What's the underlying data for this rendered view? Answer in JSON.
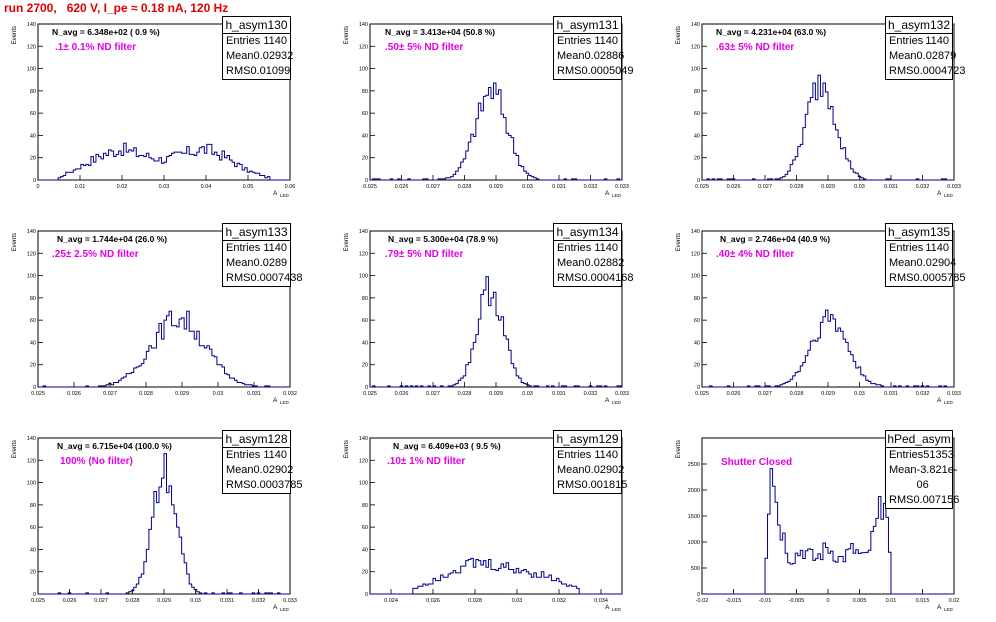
{
  "title": "run 2700,   620 V, I_pe ≈ 0.18 nA, 120 Hz",
  "colors": {
    "hist": "#00008b",
    "title": "#e00000",
    "filter": "#e600e6"
  },
  "y_axis_label": "Events",
  "x_axis_label": "A",
  "x_axis_sub": "LED",
  "chart_data": [
    {
      "type": "bar",
      "name": "h_asym130",
      "navg": "N_avg = 6.348e+02 ( 0.9 %)",
      "filter": ".1± 0.1% ND filter",
      "stats": {
        "Entries": "1140",
        "Mean": "0.02932",
        "RMS": "0.01099"
      },
      "xlim": [
        0,
        0.06
      ],
      "ylim": [
        0,
        140
      ],
      "xticks": [
        "0",
        "0.01",
        "0.02",
        "0.03",
        "0.04",
        "0.05",
        "0.06"
      ],
      "yticks": [
        "0",
        "20",
        "40",
        "60",
        "80",
        "100",
        "120",
        "140"
      ],
      "shape": "bimodal",
      "x": [
        0.005,
        0.01,
        0.015,
        0.02,
        0.025,
        0.03,
        0.035,
        0.04,
        0.045,
        0.05,
        0.055
      ],
      "values": [
        2,
        12,
        22,
        28,
        22,
        18,
        24,
        28,
        20,
        8,
        2
      ]
    },
    {
      "type": "bar",
      "name": "h_asym131",
      "navg": "N_avg = 3.413e+04 (50.8 %)",
      "filter": ".50± 5% ND filter",
      "stats": {
        "Entries": "1140",
        "Mean": "0.02886",
        "RMS": "0.0005049"
      },
      "xlim": [
        0.025,
        0.033
      ],
      "ylim": [
        0,
        140
      ],
      "xticks": [
        "0.025",
        "0.026",
        "0.027",
        "0.028",
        "0.029",
        "0.03",
        "0.031",
        "0.032",
        "0.033"
      ],
      "yticks": [
        "0",
        "20",
        "40",
        "60",
        "80",
        "100",
        "120",
        "140"
      ],
      "shape": "gauss",
      "peak": 80,
      "mean": 0.02886,
      "rms": 0.0005049
    },
    {
      "type": "bar",
      "name": "h_asym132",
      "navg": "N_avg = 4.231e+04 (63.0 %)",
      "filter": ".63± 5% ND filter",
      "stats": {
        "Entries": "1140",
        "Mean": "0.02879",
        "RMS": "0.0004723"
      },
      "xlim": [
        0.025,
        0.033
      ],
      "ylim": [
        0,
        140
      ],
      "xticks": [
        "0.025",
        "0.026",
        "0.027",
        "0.028",
        "0.029",
        "0.03",
        "0.031",
        "0.032",
        "0.033"
      ],
      "yticks": [
        "0",
        "20",
        "40",
        "60",
        "80",
        "100",
        "120",
        "140"
      ],
      "shape": "gauss",
      "peak": 88,
      "mean": 0.02879,
      "rms": 0.0004723
    },
    {
      "type": "bar",
      "name": "h_asym133",
      "navg": "N_avg = 1.744e+04 (26.0 %)",
      "filter": ".25± 2.5% ND filter",
      "stats": {
        "Entries": "1140",
        "Mean": "0.0289",
        "RMS": "0.0007438"
      },
      "xlim": [
        0.025,
        0.032
      ],
      "ylim": [
        0,
        140
      ],
      "xticks": [
        "0.025",
        "0.026",
        "0.027",
        "0.028",
        "0.029",
        "0.03",
        "0.031",
        "0.032"
      ],
      "yticks": [
        "0",
        "20",
        "40",
        "60",
        "80",
        "100",
        "120",
        "140"
      ],
      "shape": "gauss",
      "peak": 62,
      "mean": 0.0289,
      "rms": 0.0007438
    },
    {
      "type": "bar",
      "name": "h_asym134",
      "navg": "N_avg = 5.300e+04 (78.9 %)",
      "filter": ".79± 5% ND filter",
      "stats": {
        "Entries": "1140",
        "Mean": "0.02882",
        "RMS": "0.0004168"
      },
      "xlim": [
        0.025,
        0.033
      ],
      "ylim": [
        0,
        140
      ],
      "xticks": [
        "0.025",
        "0.026",
        "0.027",
        "0.028",
        "0.029",
        "0.03",
        "0.031",
        "0.032",
        "0.033"
      ],
      "yticks": [
        "0",
        "20",
        "40",
        "60",
        "80",
        "100",
        "120",
        "140"
      ],
      "shape": "gauss",
      "peak": 88,
      "mean": 0.02882,
      "rms": 0.0004168
    },
    {
      "type": "bar",
      "name": "h_asym135",
      "navg": "N_avg = 2.746e+04 (40.9 %)",
      "filter": ".40± 4% ND filter",
      "stats": {
        "Entries": "1140",
        "Mean": "0.02904",
        "RMS": "0.0005785"
      },
      "xlim": [
        0.025,
        0.033
      ],
      "ylim": [
        0,
        140
      ],
      "xticks": [
        "0.025",
        "0.026",
        "0.027",
        "0.028",
        "0.029",
        "0.03",
        "0.031",
        "0.032",
        "0.033"
      ],
      "yticks": [
        "0",
        "20",
        "40",
        "60",
        "80",
        "100",
        "120",
        "140"
      ],
      "shape": "gauss",
      "peak": 62,
      "mean": 0.02904,
      "rms": 0.0005785
    },
    {
      "type": "bar",
      "name": "h_asym128",
      "navg": "N_avg = 6.715e+04 (100.0 %)",
      "filter": "100% (No filter)",
      "stats": {
        "Entries": "1140",
        "Mean": "0.02902",
        "RMS": "0.0003785"
      },
      "xlim": [
        0.025,
        0.033
      ],
      "ylim": [
        0,
        140
      ],
      "xticks": [
        "0.025",
        "0.026",
        "0.027",
        "0.028",
        "0.029",
        "0.03",
        "0.031",
        "0.032",
        "0.033"
      ],
      "yticks": [
        "0",
        "20",
        "40",
        "60",
        "80",
        "100",
        "120",
        "140"
      ],
      "shape": "gauss",
      "peak": 115,
      "mean": 0.02902,
      "rms": 0.0003785
    },
    {
      "type": "bar",
      "name": "h_asym129",
      "navg": "N_avg = 6.409e+03 ( 9.5 %)",
      "filter": ".10± 1% ND filter",
      "stats": {
        "Entries": "1140",
        "Mean": "0.02902",
        "RMS": "0.001815"
      },
      "xlim": [
        0.023,
        0.035
      ],
      "ylim": [
        0,
        140
      ],
      "xticks": [
        "0.024",
        "0.026",
        "0.028",
        "0.03",
        "0.032",
        "0.034"
      ],
      "yticks": [
        "0",
        "20",
        "40",
        "60",
        "80",
        "100",
        "120",
        "140"
      ],
      "shape": "broad",
      "x": [
        0.025,
        0.026,
        0.027,
        0.028,
        0.029,
        0.03,
        0.031,
        0.032,
        0.033
      ],
      "values": [
        4,
        12,
        22,
        28,
        25,
        22,
        18,
        12,
        4
      ]
    },
    {
      "type": "bar",
      "name": "hPed_asym",
      "navg": "",
      "filter": "Shutter Closed",
      "stats": {
        "Entries": "51353",
        "Mean": "-3.821e-06",
        "RMS": "0.007156"
      },
      "xlim": [
        -0.02,
        0.02
      ],
      "ylim": [
        0,
        3000
      ],
      "xticks": [
        "-0.02",
        "-0.015",
        "-0.01",
        "-0.005",
        "0",
        "0.005",
        "0.01",
        "0.015",
        "0.02"
      ],
      "yticks": [
        "0",
        "500",
        "1000",
        "1500",
        "2000",
        "2500"
      ],
      "shape": "pedestal",
      "x": [
        -0.01,
        -0.009,
        -0.008,
        -0.006,
        -0.004,
        -0.002,
        0,
        0.002,
        0.004,
        0.006,
        0.008,
        0.009,
        0.01
      ],
      "values": [
        300,
        2800,
        1500,
        650,
        850,
        650,
        900,
        650,
        850,
        650,
        1400,
        2100,
        300
      ]
    }
  ]
}
